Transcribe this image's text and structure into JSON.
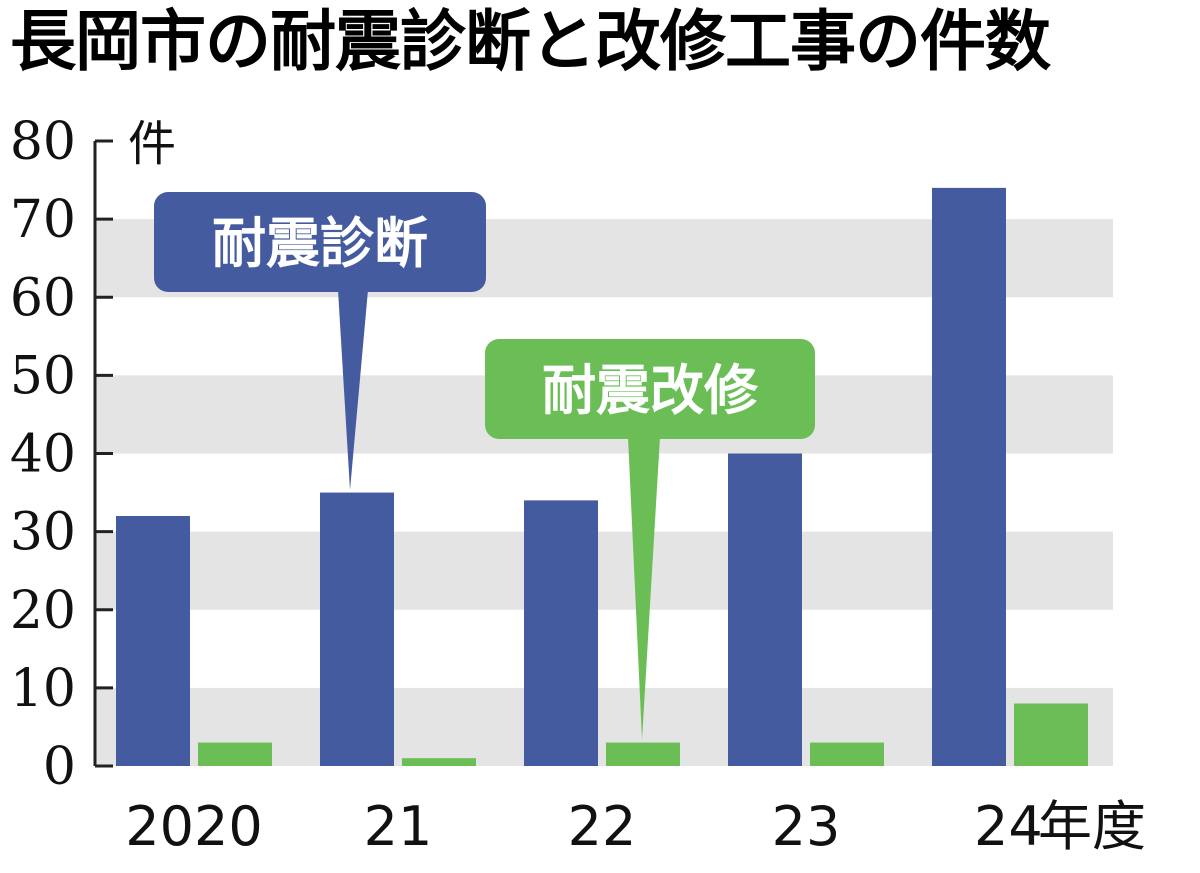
{
  "chart_data": {
    "type": "bar",
    "title": "長岡市の耐震診断と改修工事の件数",
    "y_unit": "件",
    "x_unit": "年度",
    "categories": [
      "2020",
      "21",
      "22",
      "23",
      "24"
    ],
    "series": [
      {
        "name": "耐震診断",
        "color": "#455ba0",
        "values": [
          32,
          35,
          34,
          40,
          74
        ]
      },
      {
        "name": "耐震改修",
        "color": "#6abe55",
        "values": [
          3,
          1,
          3,
          3,
          8
        ]
      }
    ],
    "ylim": [
      0,
      80
    ],
    "yticks": [
      0,
      10,
      20,
      30,
      40,
      50,
      60,
      70,
      80
    ],
    "grid": "alternating horizontal bands",
    "band_color": "#e4e4e4",
    "legend": "callouts"
  }
}
